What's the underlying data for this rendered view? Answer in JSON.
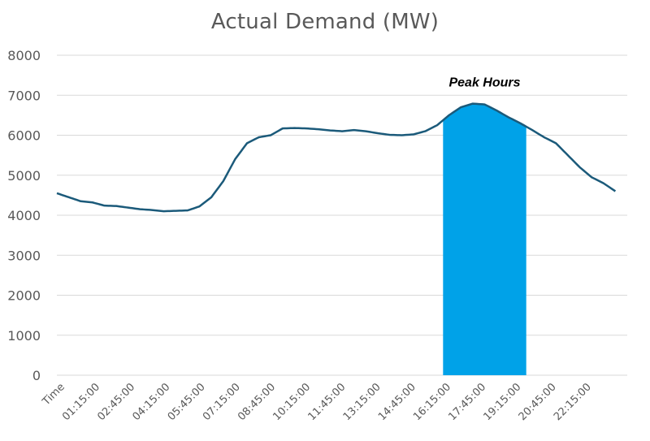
{
  "chart_data": {
    "type": "line",
    "title": "Actual Demand (MW)",
    "xlabel": "",
    "ylabel": "",
    "ylim": [
      0,
      8000
    ],
    "yticks": [
      "0",
      "1000",
      "2000",
      "3000",
      "4000",
      "5000",
      "6000",
      "7000",
      "8000"
    ],
    "xticks": [
      "Time",
      "01:15:00",
      "02:45:00",
      "04:15:00",
      "05:45:00",
      "07:15:00",
      "08:45:00",
      "10:15:00",
      "11:45:00",
      "13:15:00",
      "14:45:00",
      "16:15:00",
      "17:45:00",
      "19:15:00",
      "20:45:00",
      "22:15:00"
    ],
    "grid": true,
    "legend": "none",
    "series": [
      {
        "x": [
          "00:00",
          "00:30",
          "01:00",
          "01:30",
          "02:00",
          "02:30",
          "03:00",
          "03:30",
          "04:00",
          "04:30",
          "05:00",
          "05:30",
          "06:00",
          "06:30",
          "07:00",
          "07:30",
          "08:00",
          "08:30",
          "09:00",
          "09:30",
          "10:00",
          "10:30",
          "11:00",
          "11:30",
          "12:00",
          "12:30",
          "13:00",
          "13:30",
          "14:00",
          "14:30",
          "15:00",
          "15:30",
          "16:00",
          "16:30",
          "17:00",
          "17:30",
          "18:00",
          "18:30",
          "19:00",
          "19:30",
          "20:00",
          "20:30",
          "21:00",
          "21:30",
          "22:00",
          "22:30",
          "23:00",
          "23:30"
        ],
        "values": [
          4550,
          4450,
          4350,
          4320,
          4240,
          4230,
          4190,
          4150,
          4130,
          4100,
          4110,
          4120,
          4220,
          4450,
          4850,
          5400,
          5800,
          5950,
          6000,
          6170,
          6180,
          6170,
          6150,
          6120,
          6100,
          6130,
          6100,
          6050,
          6010,
          6000,
          6020,
          6100,
          6250,
          6500,
          6700,
          6790,
          6770,
          6620,
          6450,
          6300,
          6130,
          5950,
          5800,
          5500,
          5200,
          4950,
          4800,
          4600
        ],
        "color": "#1b5a7a"
      }
    ],
    "annotations": [
      {
        "label": "Peak Hours",
        "x_start": "16:15",
        "x_end": "19:45",
        "fill": "#00a2e8"
      }
    ]
  }
}
